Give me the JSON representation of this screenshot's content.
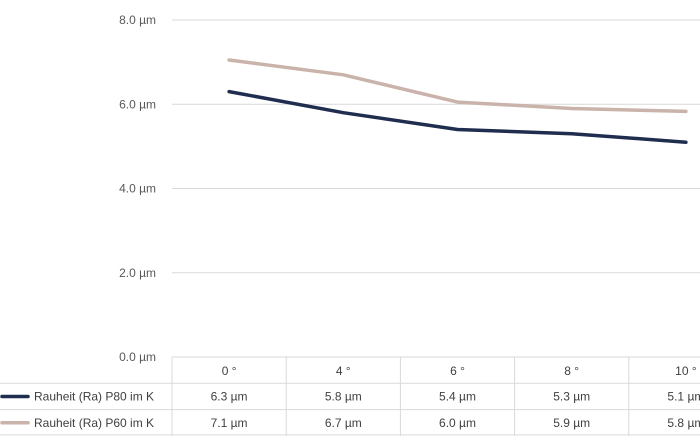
{
  "chart_data": {
    "type": "line",
    "title": "",
    "xlabel": "",
    "ylabel": "",
    "categories": [
      "0 °",
      "4 °",
      "6 °",
      "8 °",
      "10 °"
    ],
    "y_ticks": [
      "0.0 µm",
      "2.0 µm",
      "4.0 µm",
      "6.0 µm",
      "8.0 µm"
    ],
    "ylim": [
      0,
      8
    ],
    "grid": true,
    "legend_placement": "data-table",
    "series": [
      {
        "name": "Rauheit (Ra) P80 im K",
        "values": [
          6.3,
          5.8,
          5.4,
          5.3,
          5.1
        ],
        "labels": [
          "6.3 µm",
          "5.8 µm",
          "5.4 µm",
          "5.3 µm",
          "5.1 µm"
        ],
        "color": "#1f2d4f"
      },
      {
        "name": "Rauheit (Ra) P60 im K",
        "values": [
          7.05,
          6.7,
          6.05,
          5.9,
          5.83
        ],
        "labels": [
          "7.1 µm",
          "6.7 µm",
          "6.0 µm",
          "5.9 µm",
          "5.8 µm"
        ],
        "color": "#c9b3aa"
      }
    ]
  }
}
